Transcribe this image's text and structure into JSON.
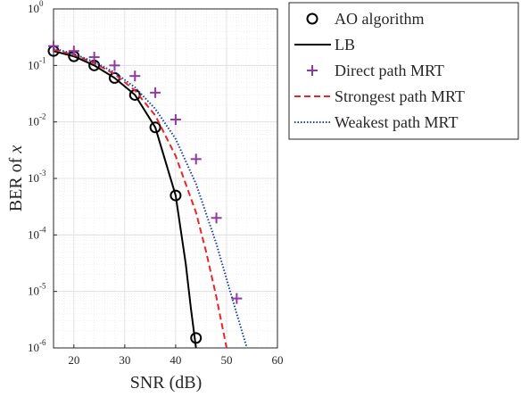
{
  "chart_data": {
    "type": "line",
    "xlabel": "SNR (dB)",
    "ylabel_main": "BER of ",
    "ylabel_var": "x",
    "xlim": [
      16,
      60
    ],
    "ylim": [
      1e-06,
      1
    ],
    "yscale": "log",
    "grid": true,
    "minor_grid": true,
    "legend_position": "outside-top-right",
    "xticks": [
      20,
      30,
      40,
      50,
      60
    ],
    "yticks": [
      {
        "value": 1,
        "base": "10",
        "exp": "0"
      },
      {
        "value": 0.1,
        "base": "10",
        "exp": "-1"
      },
      {
        "value": 0.01,
        "base": "10",
        "exp": "-2"
      },
      {
        "value": 0.001,
        "base": "10",
        "exp": "-3"
      },
      {
        "value": 0.0001,
        "base": "10",
        "exp": "-4"
      },
      {
        "value": 1e-05,
        "base": "10",
        "exp": "-5"
      },
      {
        "value": 1e-06,
        "base": "10",
        "exp": "-6"
      }
    ],
    "series": [
      {
        "name": "AO algorithm",
        "style": "markers",
        "marker": "circle",
        "color": "#000000",
        "x": [
          16,
          20,
          24,
          28,
          32,
          36,
          40,
          44
        ],
        "y": [
          0.18,
          0.145,
          0.1,
          0.06,
          0.03,
          0.008,
          0.0005,
          1.5e-06
        ]
      },
      {
        "name": "LB",
        "style": "solid",
        "color": "#000000",
        "x": [
          16,
          20,
          24,
          28,
          32,
          36,
          40,
          42,
          43,
          44
        ],
        "y": [
          0.18,
          0.145,
          0.1,
          0.06,
          0.03,
          0.008,
          0.0005,
          3e-05,
          5e-06,
          1e-06
        ]
      },
      {
        "name": "Direct path MRT",
        "style": "markers",
        "marker": "plus",
        "color": "#8e3a9e",
        "x": [
          16,
          20,
          24,
          28,
          32,
          36,
          40,
          44,
          48,
          52
        ],
        "y": [
          0.22,
          0.18,
          0.14,
          0.1,
          0.065,
          0.033,
          0.011,
          0.0022,
          0.0002,
          7.5e-06
        ]
      },
      {
        "name": "Strongest path MRT",
        "style": "dashed",
        "color": "#e8262a",
        "x": [
          16,
          20,
          24,
          28,
          32,
          36,
          40,
          44,
          46,
          48,
          50
        ],
        "y": [
          0.19,
          0.155,
          0.11,
          0.07,
          0.036,
          0.013,
          0.0025,
          0.00025,
          5e-05,
          8e-06,
          1e-06
        ]
      },
      {
        "name": "Weakest path MRT",
        "style": "dotted",
        "color": "#1f3f9e",
        "x": [
          16,
          20,
          24,
          28,
          32,
          36,
          40,
          44,
          48,
          52,
          54
        ],
        "y": [
          0.2,
          0.16,
          0.115,
          0.075,
          0.041,
          0.017,
          0.005,
          0.0008,
          7e-05,
          4e-06,
          1e-06
        ]
      }
    ]
  }
}
